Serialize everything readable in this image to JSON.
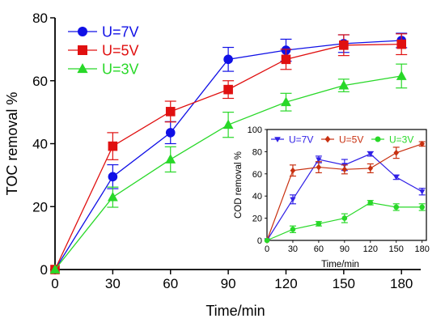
{
  "chart_data": [
    {
      "type": "line",
      "xlabel": "Time/min",
      "ylabel": "TOC removal %",
      "xlim": [
        0,
        190
      ],
      "ylim": [
        0,
        80
      ],
      "xticks": [
        0,
        30,
        60,
        90,
        120,
        150,
        180
      ],
      "yticks": [
        0,
        20,
        40,
        60,
        80
      ],
      "legend": "top-left",
      "series": [
        {
          "name": "U=7V",
          "color": "#1010e6",
          "marker": "circle",
          "x": [
            0,
            30,
            60,
            90,
            120,
            150,
            180
          ],
          "y": [
            0,
            29.5,
            43.5,
            66.8,
            69.7,
            71.8,
            72.8
          ],
          "err": [
            0,
            3.8,
            3.5,
            3.8,
            3.5,
            2.8,
            2.3
          ]
        },
        {
          "name": "U=5V",
          "color": "#e01010",
          "marker": "square",
          "x": [
            0,
            30,
            60,
            90,
            120,
            150,
            180
          ],
          "y": [
            0,
            39.2,
            50.2,
            57.2,
            66.8,
            71.3,
            71.6
          ],
          "err": [
            0,
            4.3,
            3.3,
            2.8,
            3.2,
            3.3,
            3.3
          ]
        },
        {
          "name": "U=3V",
          "color": "#28d828",
          "marker": "triangle",
          "x": [
            0,
            30,
            60,
            90,
            120,
            150,
            180
          ],
          "y": [
            0,
            23.0,
            35.0,
            46.0,
            53.2,
            58.5,
            61.5
          ],
          "err": [
            0,
            3.2,
            4.0,
            4.0,
            2.8,
            2.0,
            3.8
          ]
        }
      ]
    },
    {
      "type": "line",
      "xlabel": "Time/min",
      "ylabel": "COD removal %",
      "xlim": [
        0,
        185
      ],
      "ylim": [
        0,
        100
      ],
      "xticks": [
        0,
        30,
        60,
        90,
        120,
        150,
        180
      ],
      "yticks": [
        0,
        20,
        40,
        60,
        80,
        100
      ],
      "legend": "top",
      "series": [
        {
          "name": "U=7V",
          "color": "#3020e6",
          "marker": "triangle-down",
          "x": [
            0,
            30,
            60,
            90,
            120,
            150,
            180
          ],
          "y": [
            0,
            37,
            73,
            68,
            78,
            57,
            44
          ],
          "err": [
            0,
            4,
            3,
            5,
            2,
            2,
            3
          ]
        },
        {
          "name": "U=5V",
          "color": "#c83010",
          "marker": "diamond",
          "x": [
            0,
            30,
            60,
            90,
            120,
            150,
            180
          ],
          "y": [
            0,
            63,
            66,
            64,
            65,
            79,
            87
          ],
          "err": [
            0,
            5,
            5,
            4,
            4,
            5,
            2
          ]
        },
        {
          "name": "U=3V",
          "color": "#28d828",
          "marker": "circle",
          "x": [
            0,
            30,
            60,
            90,
            120,
            150,
            180
          ],
          "y": [
            0,
            10,
            15,
            20,
            34,
            30,
            30
          ],
          "err": [
            0,
            3,
            2,
            4,
            2,
            3,
            3
          ]
        }
      ]
    }
  ]
}
